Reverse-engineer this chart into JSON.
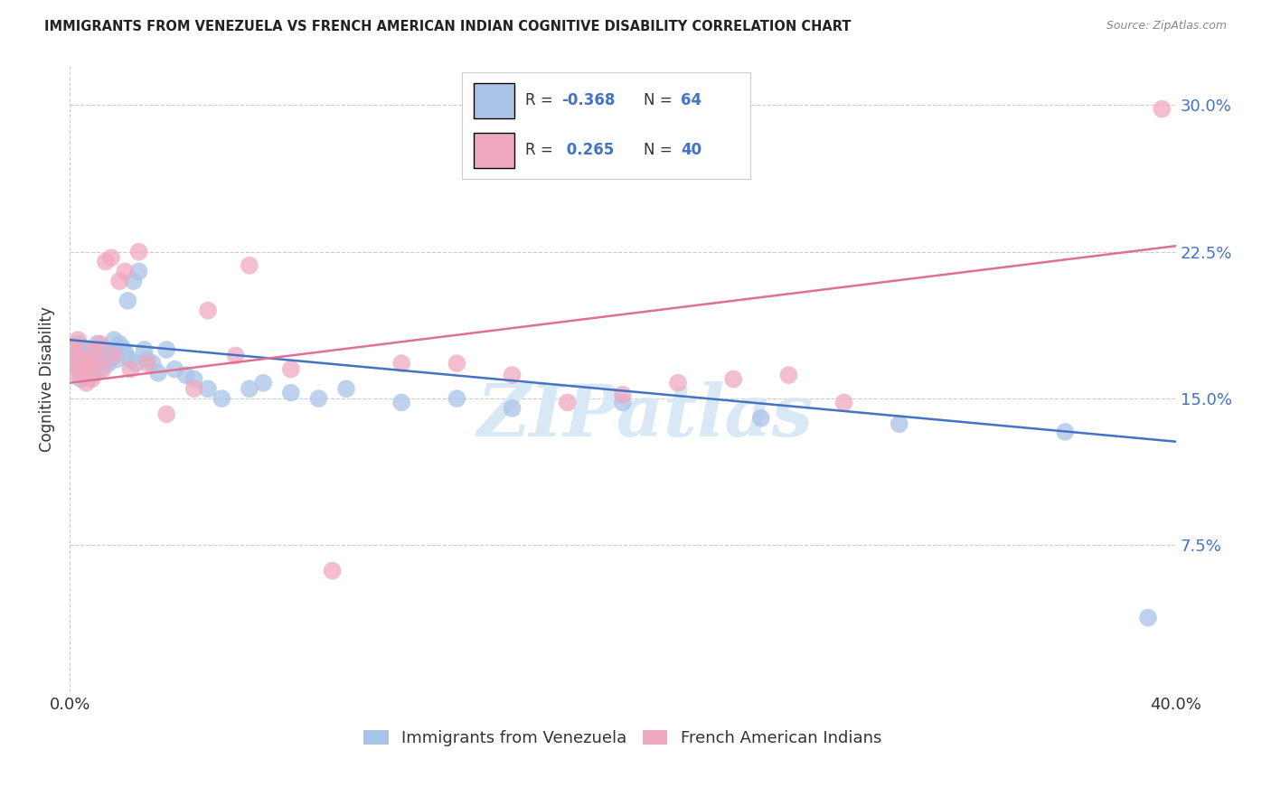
{
  "title": "IMMIGRANTS FROM VENEZUELA VS FRENCH AMERICAN INDIAN COGNITIVE DISABILITY CORRELATION CHART",
  "source": "Source: ZipAtlas.com",
  "ylabel": "Cognitive Disability",
  "x_min": 0.0,
  "x_max": 0.4,
  "y_min": 0.0,
  "y_max": 0.32,
  "x_ticks": [
    0.0,
    0.1,
    0.2,
    0.3,
    0.4
  ],
  "x_tick_labels": [
    "0.0%",
    "",
    "",
    "",
    "40.0%"
  ],
  "y_ticks": [
    0.075,
    0.15,
    0.225,
    0.3
  ],
  "y_tick_labels": [
    "7.5%",
    "15.0%",
    "22.5%",
    "30.0%"
  ],
  "color_blue": "#aac4e8",
  "color_pink": "#f0a8c0",
  "line_color_blue": "#4472c4",
  "line_color_pink": "#e07090",
  "watermark": "ZIPatlas",
  "blue_scatter_x": [
    0.001,
    0.002,
    0.002,
    0.003,
    0.003,
    0.003,
    0.004,
    0.004,
    0.004,
    0.005,
    0.005,
    0.005,
    0.006,
    0.006,
    0.007,
    0.007,
    0.008,
    0.008,
    0.008,
    0.009,
    0.01,
    0.01,
    0.011,
    0.011,
    0.012,
    0.012,
    0.013,
    0.013,
    0.014,
    0.015,
    0.016,
    0.016,
    0.017,
    0.018,
    0.019,
    0.02,
    0.021,
    0.022,
    0.023,
    0.024,
    0.025,
    0.027,
    0.028,
    0.03,
    0.032,
    0.035,
    0.038,
    0.042,
    0.045,
    0.05,
    0.055,
    0.065,
    0.07,
    0.08,
    0.09,
    0.1,
    0.12,
    0.14,
    0.16,
    0.2,
    0.25,
    0.3,
    0.36,
    0.39
  ],
  "blue_scatter_y": [
    0.17,
    0.168,
    0.175,
    0.165,
    0.172,
    0.178,
    0.16,
    0.167,
    0.173,
    0.163,
    0.17,
    0.176,
    0.165,
    0.171,
    0.168,
    0.175,
    0.162,
    0.169,
    0.174,
    0.166,
    0.173,
    0.178,
    0.17,
    0.165,
    0.172,
    0.176,
    0.169,
    0.175,
    0.168,
    0.171,
    0.174,
    0.18,
    0.17,
    0.178,
    0.176,
    0.174,
    0.2,
    0.17,
    0.21,
    0.168,
    0.215,
    0.175,
    0.17,
    0.168,
    0.163,
    0.175,
    0.165,
    0.162,
    0.16,
    0.155,
    0.15,
    0.155,
    0.158,
    0.153,
    0.15,
    0.155,
    0.148,
    0.15,
    0.145,
    0.148,
    0.14,
    0.137,
    0.133,
    0.038
  ],
  "pink_scatter_x": [
    0.001,
    0.002,
    0.002,
    0.003,
    0.003,
    0.004,
    0.005,
    0.006,
    0.006,
    0.007,
    0.008,
    0.009,
    0.01,
    0.011,
    0.012,
    0.013,
    0.015,
    0.016,
    0.018,
    0.02,
    0.022,
    0.025,
    0.028,
    0.035,
    0.045,
    0.05,
    0.06,
    0.065,
    0.08,
    0.095,
    0.12,
    0.14,
    0.16,
    0.18,
    0.2,
    0.22,
    0.24,
    0.26,
    0.28,
    0.395
  ],
  "pink_scatter_y": [
    0.168,
    0.175,
    0.163,
    0.172,
    0.18,
    0.165,
    0.17,
    0.165,
    0.158,
    0.168,
    0.16,
    0.175,
    0.17,
    0.178,
    0.165,
    0.22,
    0.222,
    0.172,
    0.21,
    0.215,
    0.165,
    0.225,
    0.168,
    0.142,
    0.155,
    0.195,
    0.172,
    0.218,
    0.165,
    0.062,
    0.168,
    0.168,
    0.162,
    0.148,
    0.152,
    0.158,
    0.16,
    0.162,
    0.148,
    0.298
  ],
  "blue_line_x": [
    0.0,
    0.4
  ],
  "blue_line_y": [
    0.18,
    0.128
  ],
  "pink_line_x": [
    0.0,
    0.4
  ],
  "pink_line_y": [
    0.158,
    0.228
  ]
}
